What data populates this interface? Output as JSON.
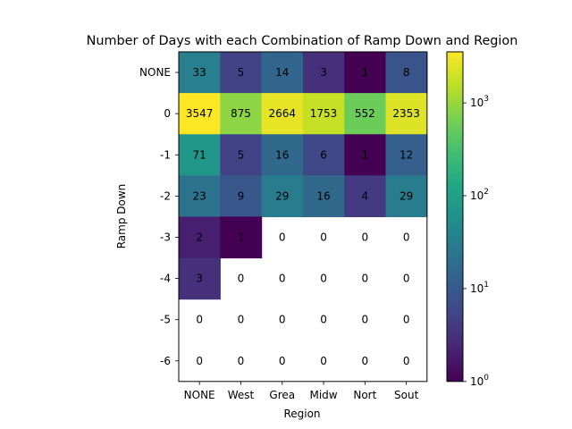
{
  "chart_data": {
    "type": "heatmap",
    "title": "Number of Days with each Combination of Ramp Down and Region",
    "xlabel": "Region",
    "ylabel": "Ramp Down",
    "x_categories": [
      "NONE",
      "West",
      "Grea",
      "Midw",
      "Nort",
      "Sout"
    ],
    "y_categories": [
      "NONE",
      "0",
      "-1",
      "-2",
      "-3",
      "-4",
      "-5",
      "-6"
    ],
    "values": [
      [
        33,
        5,
        14,
        3,
        1,
        8
      ],
      [
        3547,
        875,
        2664,
        1753,
        552,
        2353
      ],
      [
        71,
        5,
        16,
        6,
        1,
        12
      ],
      [
        23,
        9,
        29,
        16,
        4,
        29
      ],
      [
        2,
        1,
        0,
        0,
        0,
        0
      ],
      [
        3,
        0,
        0,
        0,
        0,
        0
      ],
      [
        0,
        0,
        0,
        0,
        0,
        0
      ],
      [
        0,
        0,
        0,
        0,
        0,
        0
      ]
    ],
    "color_scale": "log",
    "colormap": "viridis",
    "zero_cells": "blank (white)",
    "colorbar": {
      "range": [
        1,
        3547
      ],
      "ticks": [
        {
          "base": "10",
          "exp": "0"
        },
        {
          "base": "10",
          "exp": "1"
        },
        {
          "base": "10",
          "exp": "2"
        },
        {
          "base": "10",
          "exp": "3"
        }
      ]
    }
  }
}
